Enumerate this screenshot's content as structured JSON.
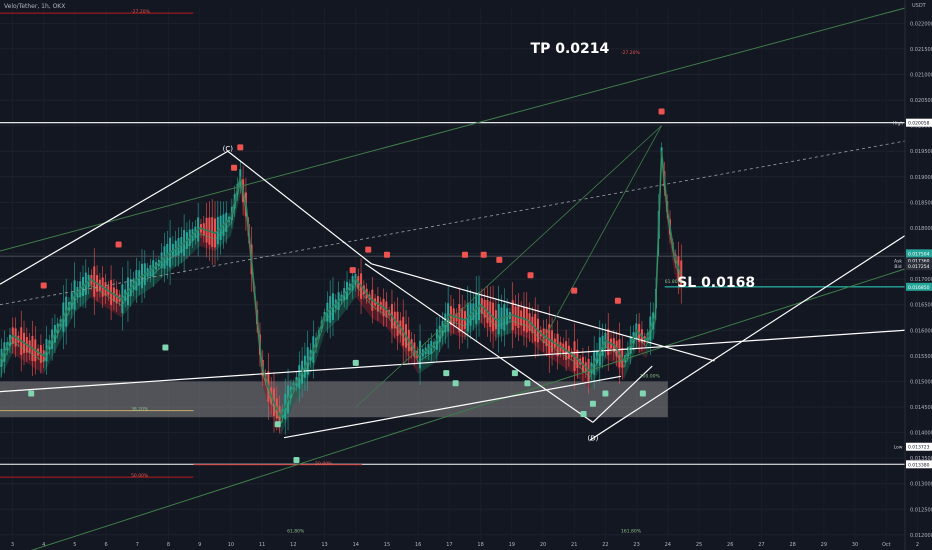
{
  "header": {
    "title": "Velo/Tether, 1h, OKX",
    "unit": "USDT"
  },
  "colors": {
    "background": "#131722",
    "bull": "#26a69a",
    "bear": "#ef5350",
    "bull_cloud": "#1b5e4a",
    "bear_cloud": "#7a1f2b",
    "zone": "#9e9e9e",
    "white": "#ffffff",
    "green_line": "#3f7d4a",
    "fib_red": "#b71c1c"
  },
  "chart_data": {
    "type": "line",
    "title": "",
    "xlabel": "",
    "ylabel": "",
    "ylim": [
      0.0119,
      0.0223
    ],
    "x_ticks": [
      "3",
      "4",
      "5",
      "6",
      "7",
      "8",
      "9",
      "10",
      "11",
      "12",
      "13",
      "14",
      "15",
      "16",
      "17",
      "18",
      "19",
      "20",
      "21",
      "22",
      "23",
      "24",
      "25",
      "26",
      "27",
      "28",
      "29",
      "30",
      "Oct",
      "2"
    ],
    "y_ticks": [
      "0.022000",
      "0.021500",
      "0.021000",
      "0.020500",
      "0.020000",
      "0.019500",
      "0.019000",
      "0.018500",
      "0.018000",
      "0.017500",
      "0.017000",
      "0.016500",
      "0.016000",
      "0.015500",
      "0.015000",
      "0.014500",
      "0.014000",
      "0.013500",
      "0.013000",
      "0.012500",
      "0.012000"
    ],
    "series": [
      {
        "x": [
          2.6,
          3.0,
          3.5,
          4.0,
          4.5,
          5.0,
          5.5,
          6.0,
          6.5,
          7.0,
          7.5,
          8.0,
          8.5,
          9.0,
          9.5,
          10.0,
          10.3,
          10.5,
          10.8,
          11.0,
          11.3,
          11.6,
          12.0,
          12.3,
          12.7,
          13.0,
          13.5,
          14.0,
          14.5,
          15.0,
          15.5,
          16.0,
          16.5,
          17.0,
          17.5,
          18.0,
          18.5,
          19.0,
          19.5,
          20.0,
          20.5,
          21.0,
          21.5,
          22.0,
          22.3,
          22.6,
          23.0,
          23.3,
          23.6,
          23.8,
          24.0,
          24.2,
          24.4
        ],
        "values": [
          0.0154,
          0.0159,
          0.0157,
          0.0155,
          0.0161,
          0.0167,
          0.017,
          0.0168,
          0.0166,
          0.017,
          0.0172,
          0.0175,
          0.0177,
          0.018,
          0.0179,
          0.0182,
          0.019,
          0.0184,
          0.0165,
          0.0153,
          0.0147,
          0.0143,
          0.0149,
          0.0152,
          0.0157,
          0.0163,
          0.0166,
          0.017,
          0.0166,
          0.0164,
          0.016,
          0.0155,
          0.0157,
          0.0163,
          0.0162,
          0.0165,
          0.0162,
          0.0163,
          0.0162,
          0.0159,
          0.0157,
          0.0155,
          0.0152,
          0.0158,
          0.0157,
          0.0154,
          0.016,
          0.0158,
          0.0163,
          0.0195,
          0.0183,
          0.0175,
          0.0171
        ]
      }
    ],
    "price_labels": [
      {
        "label": "High",
        "value": "0.020058",
        "y": 0.020058
      },
      {
        "label": "Ask",
        "value": "0.017360",
        "y": 0.01736
      },
      {
        "label": "Bid",
        "value": "0.017254",
        "y": 0.017254
      },
      {
        "label": "",
        "value": "0.017504",
        "y": 0.017504
      },
      {
        "label": "",
        "value": "0.016850",
        "y": 0.01685
      },
      {
        "label": "Low",
        "value": "0.013723",
        "y": 0.013723
      },
      {
        "label": "",
        "value": "0.013380",
        "y": 0.01338
      }
    ],
    "annotations": [
      {
        "text": "TP 0.0214",
        "x": 19.6,
        "y": 0.02142
      },
      {
        "text": "SL 0.0168",
        "x": 24.3,
        "y": 0.01685
      },
      {
        "text": "(C)",
        "x": 9.9,
        "y": 0.0195
      },
      {
        "text": "(D)",
        "x": 21.6,
        "y": 0.01385
      }
    ],
    "fib_labels": [
      {
        "text": "-27.20%",
        "x": 6.8,
        "y": 0.0222
      },
      {
        "text": "-27.20%",
        "x": 22.5,
        "y": 0.0214
      },
      {
        "text": "61.80%",
        "x": 23.9,
        "y": 0.01692
      },
      {
        "text": "100.00%",
        "x": 23.1,
        "y": 0.01508
      },
      {
        "text": "38.20%",
        "x": 6.8,
        "y": 0.01443
      },
      {
        "text": "50.00%",
        "x": 12.7,
        "y": 0.01337
      },
      {
        "text": "50.00%",
        "x": 6.8,
        "y": 0.01313
      },
      {
        "text": "61.80%",
        "x": 11.8,
        "y": 0.01205
      },
      {
        "text": "161.80%",
        "x": 22.5,
        "y": 0.01205
      }
    ]
  }
}
